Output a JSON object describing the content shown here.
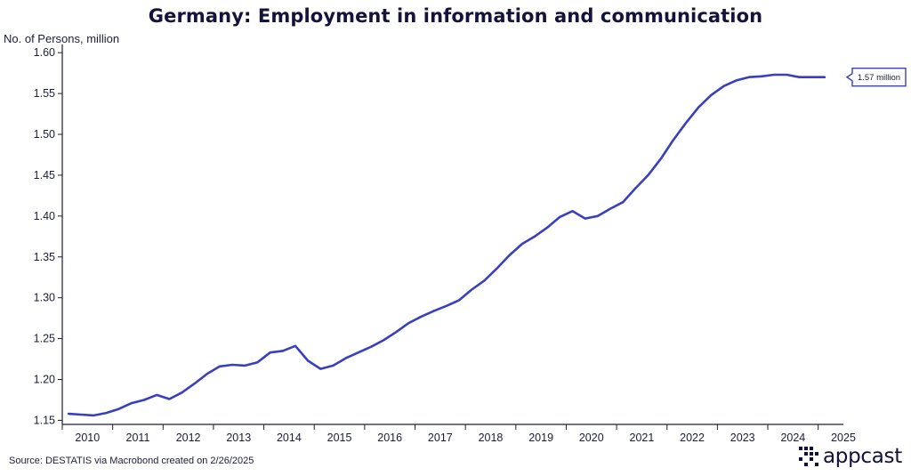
{
  "chart_data": {
    "type": "line",
    "title": "Germany: Employment in information and communication",
    "ylabel": "No. of Persons, million",
    "xlabel": "",
    "xlim": [
      2009.75,
      2025.25
    ],
    "ylim": [
      1.145,
      1.61
    ],
    "yticks": [
      "1.15",
      "1.20",
      "1.25",
      "1.30",
      "1.35",
      "1.40",
      "1.45",
      "1.50",
      "1.55",
      "1.60"
    ],
    "xticks": [
      "2010",
      "2011",
      "2012",
      "2013",
      "2014",
      "2015",
      "2016",
      "2017",
      "2018",
      "2019",
      "2020",
      "2021",
      "2022",
      "2023",
      "2024",
      "2025"
    ],
    "series": [
      {
        "name": "Employment in information and communication",
        "color": "#3a3fc0",
        "x": [
          2009.875,
          2010.125,
          2010.375,
          2010.625,
          2010.875,
          2011.125,
          2011.375,
          2011.625,
          2011.875,
          2012.125,
          2012.375,
          2012.625,
          2012.875,
          2013.125,
          2013.375,
          2013.625,
          2013.875,
          2014.125,
          2014.375,
          2014.625,
          2014.875,
          2015.125,
          2015.375,
          2015.625,
          2015.875,
          2016.125,
          2016.375,
          2016.625,
          2016.875,
          2017.125,
          2017.375,
          2017.625,
          2017.875,
          2018.125,
          2018.375,
          2018.625,
          2018.875,
          2019.125,
          2019.375,
          2019.625,
          2019.875,
          2020.125,
          2020.375,
          2020.625,
          2020.875,
          2021.125,
          2021.375,
          2021.625,
          2021.875,
          2022.125,
          2022.375,
          2022.625,
          2022.875,
          2023.125,
          2023.375,
          2023.625,
          2023.875,
          2024.125,
          2024.375,
          2024.625,
          2024.875
        ],
        "values": [
          1.158,
          1.157,
          1.156,
          1.159,
          1.164,
          1.171,
          1.175,
          1.181,
          1.176,
          1.184,
          1.195,
          1.207,
          1.216,
          1.218,
          1.217,
          1.221,
          1.233,
          1.235,
          1.241,
          1.223,
          1.213,
          1.217,
          1.226,
          1.233,
          1.24,
          1.248,
          1.258,
          1.269,
          1.277,
          1.284,
          1.29,
          1.297,
          1.31,
          1.321,
          1.336,
          1.352,
          1.366,
          1.375,
          1.386,
          1.399,
          1.406,
          1.397,
          1.4,
          1.409,
          1.417,
          1.434,
          1.45,
          1.47,
          1.493,
          1.514,
          1.533,
          1.548,
          1.559,
          1.566,
          1.57,
          1.571,
          1.573,
          1.573,
          1.57,
          1.57,
          1.57
        ]
      }
    ],
    "annotations": [
      {
        "text": "1.57 million",
        "x": 2024.875,
        "y": 1.57
      }
    ]
  },
  "source": "Source: DESTATIS via Macrobond created on 2/26/2025",
  "logo_text": "appcast"
}
